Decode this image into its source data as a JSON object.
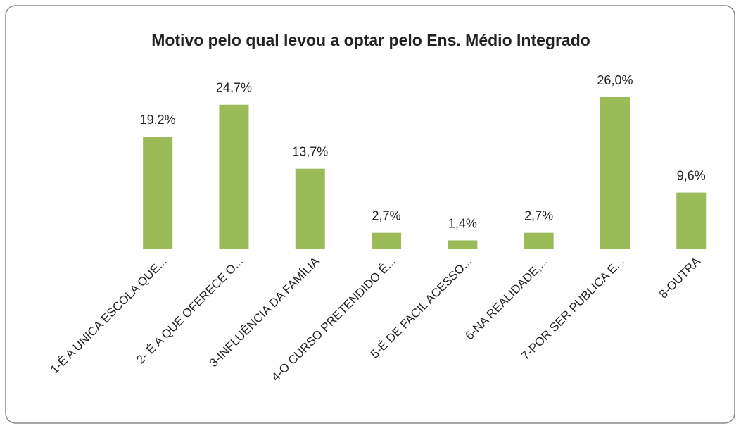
{
  "chart_data": {
    "type": "bar",
    "title": "Motivo pelo qual levou a optar pelo Ens. Médio Integrado",
    "categories": [
      "1-É A UNICA ESCOLA QUE...",
      "2- É A QUE OFERECE O...",
      "3-INFLUÊNCIA DA FAMÍLIA",
      "4-O CURSO PRETENDIDO É...",
      "5-É DE FACIL ACESSO...",
      "6-NA REALIDADE,...",
      "7-POR SER PÚBLICA E...",
      "8-OUTRA"
    ],
    "values": [
      19.2,
      24.7,
      13.7,
      2.7,
      1.4,
      2.7,
      26.0,
      9.6
    ],
    "value_labels": [
      "19,2%",
      "24,7%",
      "13,7%",
      "2,7%",
      "1,4%",
      "2,7%",
      "26,0%",
      "9,6%"
    ],
    "color": "#9bbb59"
  }
}
